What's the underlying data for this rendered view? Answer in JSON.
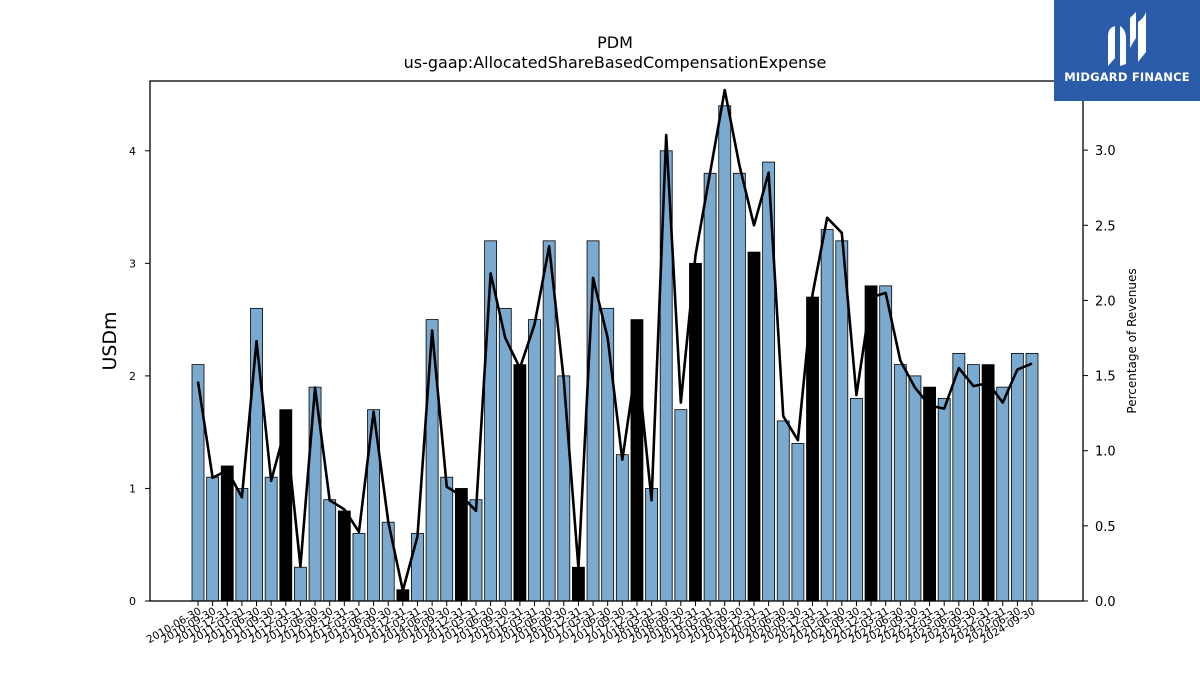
{
  "chart_data": {
    "type": "bar",
    "title": "PDM",
    "subtitle": "us-gaap:AllocatedShareBasedCompensationExpense",
    "ylabel": "USDm",
    "y2label": "Percentage of Revenues",
    "ylim": [
      0,
      4.62
    ],
    "y2lim": [
      0,
      3.46
    ],
    "yticks": [
      "0",
      "1",
      "2",
      "3",
      "4"
    ],
    "y2ticks": [
      "0.0",
      "0.5",
      "1.0",
      "1.5",
      "2.0",
      "2.5",
      "3.0"
    ],
    "grid": false,
    "colors": {
      "bar_default": "#7aaad0",
      "bar_highlight": "#000000",
      "line": "#000000"
    },
    "categories": [
      "2010-06-30",
      "2010-09-30",
      "2010-12-31",
      "2011-03-31",
      "2011-06-30",
      "2011-09-30",
      "2011-12-31",
      "2012-03-31",
      "2012-06-30",
      "2012-09-30",
      "2012-12-31",
      "2013-03-31",
      "2013-06-30",
      "2013-09-30",
      "2013-12-31",
      "2014-03-31",
      "2014-06-30",
      "2014-09-30",
      "2014-12-31",
      "2015-03-31",
      "2015-06-30",
      "2015-09-30",
      "2015-12-31",
      "2016-03-31",
      "2016-06-30",
      "2016-09-30",
      "2016-12-31",
      "2017-03-31",
      "2017-06-30",
      "2017-09-30",
      "2017-12-31",
      "2018-03-31",
      "2018-06-30",
      "2018-09-30",
      "2018-12-31",
      "2019-03-31",
      "2019-06-30",
      "2019-09-30",
      "2019-12-31",
      "2020-03-31",
      "2020-06-30",
      "2020-09-30",
      "2020-12-31",
      "2021-03-31",
      "2021-06-30",
      "2021-09-30",
      "2021-12-31",
      "2022-03-31",
      "2022-06-30",
      "2022-09-30",
      "2022-12-31",
      "2023-03-31",
      "2023-06-30",
      "2023-09-30",
      "2023-12-31",
      "2024-03-31",
      "2024-06-30",
      "2024-09-30"
    ],
    "series": [
      {
        "values": [
          2.1,
          1.1,
          1.2,
          1.0,
          2.6,
          1.1,
          1.7,
          0.3,
          1.9,
          0.9,
          0.8,
          0.6,
          1.7,
          0.7,
          0.1,
          0.6,
          2.5,
          1.1,
          1.0,
          0.9,
          3.2,
          2.6,
          2.1,
          2.5,
          3.2,
          2.0,
          0.3,
          3.2,
          2.6,
          1.3,
          2.5,
          1.0,
          4.0,
          1.7,
          3.0,
          3.8,
          4.4,
          3.8,
          3.1,
          3.9,
          1.6,
          1.4,
          2.7,
          3.3,
          3.2,
          1.8,
          2.8,
          2.8,
          2.1,
          2.0,
          1.9,
          1.8,
          2.2,
          2.1,
          2.1,
          1.9,
          2.2,
          2.2
        ],
        "highlight": [
          0,
          0,
          1,
          0,
          0,
          0,
          1,
          0,
          0,
          0,
          1,
          0,
          0,
          0,
          1,
          0,
          0,
          0,
          1,
          0,
          0,
          0,
          1,
          0,
          0,
          0,
          1,
          0,
          0,
          0,
          1,
          0,
          0,
          0,
          1,
          0,
          0,
          0,
          1,
          0,
          0,
          0,
          1,
          0,
          0,
          0,
          1,
          0,
          0,
          0,
          1,
          0,
          0,
          0,
          1,
          0,
          0,
          0
        ]
      },
      {
        "axis": "right",
        "values": [
          1.46,
          0.82,
          0.87,
          0.69,
          1.73,
          0.8,
          1.16,
          0.23,
          1.42,
          0.67,
          0.61,
          0.46,
          1.26,
          0.53,
          0.07,
          0.43,
          1.8,
          0.76,
          0.7,
          0.6,
          2.18,
          1.75,
          1.55,
          1.84,
          2.36,
          1.47,
          0.22,
          2.15,
          1.75,
          0.94,
          1.61,
          0.67,
          3.1,
          1.32,
          2.3,
          2.85,
          3.4,
          2.9,
          2.5,
          2.85,
          1.23,
          1.07,
          2.04,
          2.55,
          2.45,
          1.37,
          2.02,
          2.05,
          1.6,
          1.42,
          1.3,
          1.28,
          1.55,
          1.43,
          1.45,
          1.32,
          1.54,
          1.58
        ]
      }
    ]
  },
  "logo": {
    "text": "MIDGARD FINANCE",
    "color": "#2a5caa"
  }
}
